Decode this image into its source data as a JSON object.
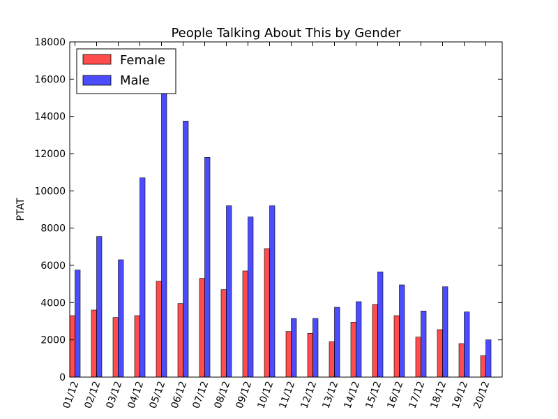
{
  "chart_data": {
    "type": "bar",
    "title": "People Talking About This by Gender",
    "xlabel": "",
    "ylabel": "PTAT",
    "ylim": [
      0,
      18000
    ],
    "yticks": [
      "0",
      "2000",
      "4000",
      "6000",
      "8000",
      "10000",
      "12000",
      "14000",
      "16000",
      "18000"
    ],
    "categories": [
      "01/12",
      "02/12",
      "03/12",
      "04/12",
      "05/12",
      "06/12",
      "07/12",
      "08/12",
      "09/12",
      "10/12",
      "11/12",
      "12/12",
      "13/12",
      "14/12",
      "15/12",
      "16/12",
      "17/12",
      "18/12",
      "19/12",
      "20/12"
    ],
    "series": [
      {
        "name": "Female",
        "color": "#ff0000",
        "values": [
          3300,
          3600,
          3200,
          3300,
          5150,
          3950,
          5300,
          4700,
          5700,
          6900,
          2450,
          2350,
          1900,
          2950,
          3900,
          3300,
          2150,
          2550,
          1800,
          1150
        ]
      },
      {
        "name": "Male",
        "color": "#0000ff",
        "values": [
          5750,
          7550,
          6300,
          10700,
          16500,
          13750,
          11800,
          9200,
          8600,
          9200,
          3150,
          3150,
          3750,
          4050,
          5650,
          4950,
          3550,
          4850,
          3500,
          2000
        ]
      }
    ],
    "legend_position": "upper-left",
    "grid": false
  }
}
